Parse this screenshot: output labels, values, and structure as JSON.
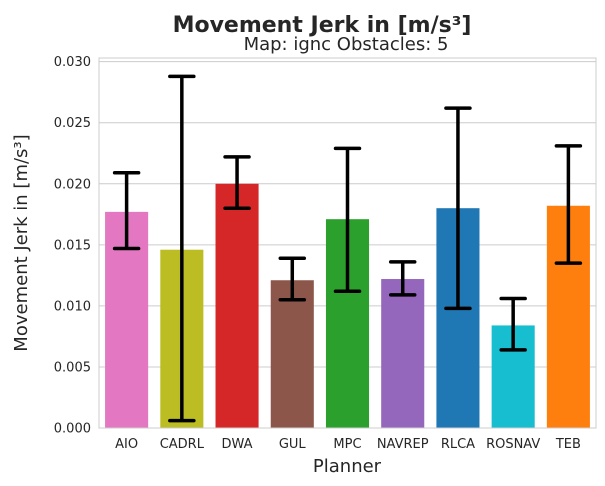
{
  "chart_data": {
    "type": "bar",
    "title": "Movement Jerk in [m/s³]",
    "subtitle": "Map: ignc Obstacles: 5",
    "xlabel": "Planner",
    "ylabel": "Movement Jerk in [m/s³]",
    "ylim": [
      0,
      0.0303
    ],
    "yticks": [
      "0.000",
      "0.005",
      "0.010",
      "0.015",
      "0.020",
      "0.025",
      "0.030"
    ],
    "grid": true,
    "categories": [
      "AIO",
      "CADRL",
      "DWA",
      "GUL",
      "MPC",
      "NAVREP",
      "RLCA",
      "ROSNAV",
      "TEB"
    ],
    "values": [
      0.0177,
      0.0146,
      0.02,
      0.0121,
      0.0171,
      0.0122,
      0.018,
      0.0084,
      0.0182
    ],
    "error_low": [
      0.0147,
      0.0006,
      0.018,
      0.0105,
      0.0112,
      0.0109,
      0.0098,
      0.0064,
      0.0135
    ],
    "error_high": [
      0.0209,
      0.0288,
      0.0222,
      0.0139,
      0.0229,
      0.0136,
      0.0262,
      0.0106,
      0.0231
    ],
    "colors": [
      "#e377c2",
      "#bcbd22",
      "#d62728",
      "#8c564b",
      "#2ca02c",
      "#9467bd",
      "#1f77b4",
      "#17becf",
      "#ff7f0e"
    ]
  }
}
